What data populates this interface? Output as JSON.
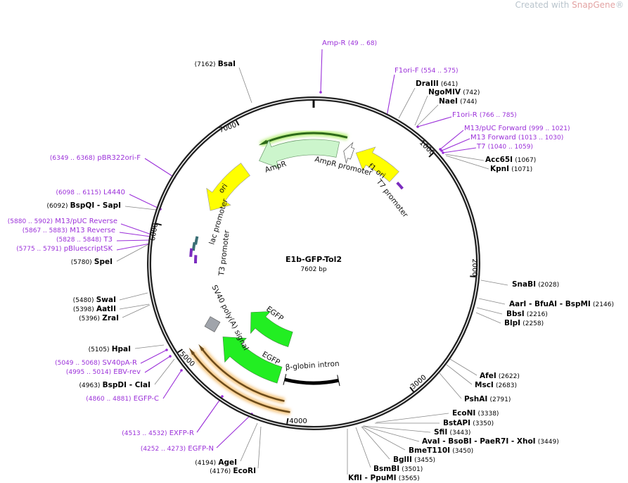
{
  "watermark": {
    "prefix": "Created with ",
    "brand": "SnapGene",
    "mark": "®"
  },
  "plasmid": {
    "name": "E1b-GFP-Tol2",
    "length": "7602 bp"
  },
  "ticks": [
    "1000",
    "2000",
    "3000",
    "4000",
    "5000",
    "6000",
    "7000"
  ],
  "features": {
    "ampr": "AmpR",
    "ampr_promoter": "AmpR promoter",
    "f1_ori": "f1 ori",
    "t7_promoter": "T7 promoter",
    "ori": "ori",
    "lac_promoter": "lac promoter",
    "t3_promoter": "T3 promoter",
    "sv40": "SV40 poly(A) signal",
    "egfp_1": "EGFP",
    "egfp_2": "EGFP",
    "bglobin": "β-globin intron"
  },
  "colors": {
    "primer": "#9b30d9",
    "enzyme_line": "#888888",
    "ampr": "#ccf5cc",
    "ori": "#ffff00",
    "egfp": "#22ee22",
    "primer_glow": "#f5c680"
  },
  "primers": [
    {
      "name": "Amp-R",
      "range": "(49 .. 68)"
    },
    {
      "name": "F1ori-F",
      "range": "(554 .. 575)"
    },
    {
      "name": "F1ori-R",
      "range": "(766 .. 785)"
    },
    {
      "name": "M13/pUC Forward",
      "range": "(999 .. 1021)"
    },
    {
      "name": "M13 Forward",
      "range": "(1013 .. 1030)"
    },
    {
      "name": "T7",
      "range": "(1040 .. 1059)"
    },
    {
      "name": "pBR322ori-F",
      "range": "(6349 .. 6368)"
    },
    {
      "name": "L4440",
      "range": "(6098 .. 6115)"
    },
    {
      "name": "M13/pUC Reverse",
      "range": "(5880 .. 5902)"
    },
    {
      "name": "M13 Reverse",
      "range": "(5867 .. 5883)"
    },
    {
      "name": "T3",
      "range": "(5828 .. 5848)"
    },
    {
      "name": "pBluescriptSK",
      "range": "(5775 .. 5791)"
    },
    {
      "name": "SV40pA-R",
      "range": "(5049 .. 5068)"
    },
    {
      "name": "EBV-rev",
      "range": "(4995 .. 5014)"
    },
    {
      "name": "EGFP-C",
      "range": "(4860 .. 4881)"
    },
    {
      "name": "EXFP-R",
      "range": "(4513 .. 4532)"
    },
    {
      "name": "EGFP-N",
      "range": "(4252 .. 4273)"
    }
  ],
  "enzymes": [
    {
      "name": "DraIII",
      "pos": "(641)"
    },
    {
      "name": "NgoMIV",
      "pos": "(742)"
    },
    {
      "name": "NaeI",
      "pos": "(744)"
    },
    {
      "name": "Acc65I",
      "pos": "(1067)"
    },
    {
      "name": "KpnI",
      "pos": "(1071)"
    },
    {
      "name": "SnaBI",
      "pos": "(2028)"
    },
    {
      "name": "AarI  - BfuAI  - BspMI",
      "pos": "(2146)"
    },
    {
      "name": "BbsI",
      "pos": "(2216)"
    },
    {
      "name": "BlpI",
      "pos": "(2258)"
    },
    {
      "name": "AfeI",
      "pos": "(2622)"
    },
    {
      "name": "MscI",
      "pos": "(2683)"
    },
    {
      "name": "PshAI",
      "pos": "(2791)"
    },
    {
      "name": "EcoNI",
      "pos": "(3338)"
    },
    {
      "name": "BstAPI",
      "pos": "(3350)"
    },
    {
      "name": "SfiI",
      "pos": "(3443)"
    },
    {
      "name": "AvaI  - BsoBI  - PaeR7I  - XhoI",
      "pos": "(3449)"
    },
    {
      "name": "BmeT110I",
      "pos": "(3450)"
    },
    {
      "name": "BglII",
      "pos": "(3455)"
    },
    {
      "name": "BsmBI",
      "pos": "(3501)"
    },
    {
      "name": "KflI  - PpuMI",
      "pos": "(3565)"
    },
    {
      "name": "BsaI",
      "pos": "(7162)"
    },
    {
      "name": "BspQI  - SapI",
      "pos": "(6092)"
    },
    {
      "name": "SpeI",
      "pos": "(5780)"
    },
    {
      "name": "SwaI",
      "pos": "(5480)"
    },
    {
      "name": "AatII",
      "pos": "(5398)"
    },
    {
      "name": "ZraI",
      "pos": "(5396)"
    },
    {
      "name": "HpaI",
      "pos": "(5105)"
    },
    {
      "name": "BspDI  - ClaI",
      "pos": "(4963)"
    },
    {
      "name": "AgeI",
      "pos": "(4194)"
    },
    {
      "name": "EcoRI",
      "pos": "(4176)"
    }
  ]
}
